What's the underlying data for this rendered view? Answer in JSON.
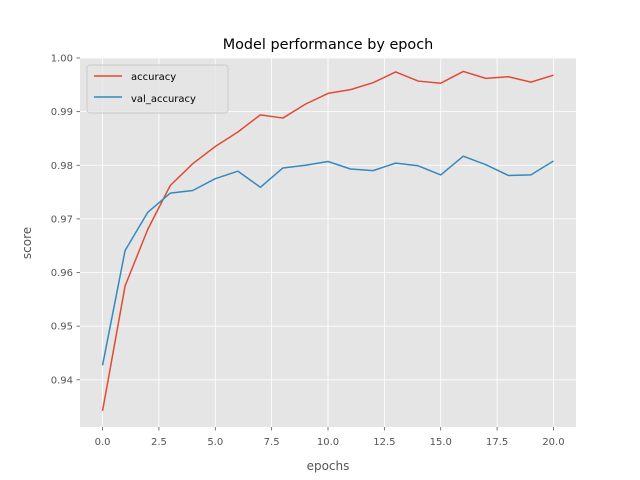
{
  "chart_data": {
    "type": "line",
    "title": "Model performance by epoch",
    "xlabel": "epochs",
    "ylabel": "score",
    "xlim": [
      -1,
      21
    ],
    "ylim": [
      0.9312,
      1.0
    ],
    "xticks": [
      0.0,
      2.5,
      5.0,
      7.5,
      10.0,
      12.5,
      15.0,
      17.5,
      20.0
    ],
    "xtick_labels": [
      "0.0",
      "2.5",
      "5.0",
      "7.5",
      "10.0",
      "12.5",
      "15.0",
      "17.5",
      "20.0"
    ],
    "yticks": [
      0.94,
      0.95,
      0.96,
      0.97,
      0.98,
      0.99,
      1.0
    ],
    "ytick_labels": [
      "0.94",
      "0.95",
      "0.96",
      "0.97",
      "0.98",
      "0.99",
      "1.00"
    ],
    "grid": true,
    "legend_position": "top-left",
    "x": [
      0,
      1,
      2,
      3,
      4,
      5,
      6,
      7,
      8,
      9,
      10,
      11,
      12,
      13,
      14,
      15,
      16,
      17,
      18,
      19,
      20
    ],
    "series": [
      {
        "name": "accuracy",
        "color": "#E24A33",
        "values": [
          0.9342,
          0.9575,
          0.968,
          0.9762,
          0.9803,
          0.9835,
          0.9862,
          0.9894,
          0.9888,
          0.9914,
          0.9934,
          0.9941,
          0.9954,
          0.9974,
          0.9957,
          0.9953,
          0.9975,
          0.9962,
          0.9965,
          0.9955,
          0.9968
        ]
      },
      {
        "name": "val_accuracy",
        "color": "#348ABD",
        "values": [
          0.9427,
          0.9641,
          0.9712,
          0.9748,
          0.9753,
          0.9775,
          0.9789,
          0.9759,
          0.9795,
          0.98,
          0.9807,
          0.9793,
          0.979,
          0.9804,
          0.9799,
          0.9782,
          0.9817,
          0.9801,
          0.9781,
          0.9782,
          0.9808
        ]
      }
    ]
  }
}
